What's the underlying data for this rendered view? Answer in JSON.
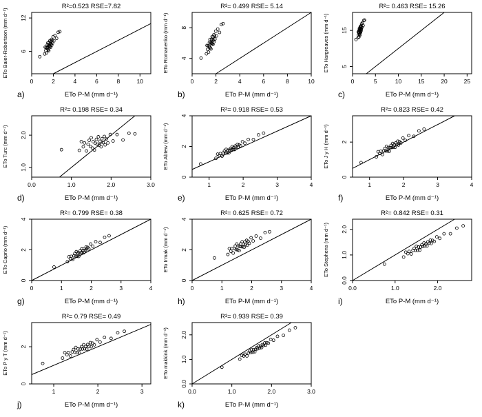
{
  "figure": {
    "background": "#ffffff",
    "foreground": "#000000",
    "marker": "open-circle",
    "grid": "off",
    "layout": {
      "columns": 3,
      "rows": 4,
      "panel_count": 11
    }
  },
  "chart_data": {
    "type": "scatter",
    "xlabel": "ETo P-M (mm d⁻¹)",
    "x": [
      0.75,
      1.2,
      1.25,
      1.3,
      1.33,
      1.38,
      1.42,
      1.45,
      1.48,
      1.5,
      1.53,
      1.55,
      1.58,
      1.6,
      1.63,
      1.65,
      1.68,
      1.7,
      1.72,
      1.75,
      1.77,
      1.8,
      1.83,
      1.85,
      1.88,
      1.92,
      1.98,
      2.05,
      2.15,
      2.3,
      2.45,
      2.6
    ],
    "panels": [
      {
        "id": "a",
        "letter": "a)",
        "ylabel": "ETo Baier-Robertson (mm d⁻¹)",
        "r2": 0.523,
        "rse": 7.82,
        "annotation": "R²=0.523  RSE=7.82",
        "xlim": [
          0,
          11
        ],
        "ylim": [
          2,
          13
        ],
        "xticks": [
          "0",
          "2",
          "4",
          "6",
          "8",
          "10"
        ],
        "yticks": [
          "6",
          "12"
        ],
        "identity_line": true,
        "y": [
          5.06,
          5.55,
          6.76,
          6.16,
          6.69,
          5.73,
          6.64,
          7.17,
          6.43,
          7.56,
          6.29,
          7.15,
          6.14,
          7.0,
          7.53,
          6.95,
          7.92,
          6.89,
          7.44,
          6.75,
          7.83,
          7.37,
          8.16,
          7.13,
          7.93,
          7.49,
          8.63,
          7.9,
          8.87,
          8.35,
          9.44,
          9.55
        ]
      },
      {
        "id": "b",
        "letter": "b)",
        "ylabel": "ETo Romanenko (mm d⁻¹)",
        "r2": 0.499,
        "rse": 5.14,
        "annotation": "R²= 0.499  RSE= 5.14",
        "xlim": [
          0,
          10
        ],
        "ylim": [
          2,
          10
        ],
        "xticks": [
          "0",
          "2",
          "4",
          "6",
          "8",
          "10"
        ],
        "yticks": [
          "4",
          "8"
        ],
        "identity_line": true,
        "y": [
          4.04,
          4.6,
          5.69,
          5.17,
          5.65,
          4.81,
          5.63,
          6.11,
          5.46,
          6.47,
          5.35,
          6.12,
          5.23,
          6.0,
          6.48,
          5.97,
          6.84,
          5.93,
          6.42,
          5.82,
          6.79,
          6.38,
          7.1,
          6.19,
          6.9,
          6.52,
          7.55,
          6.93,
          7.82,
          7.39,
          8.41,
          8.54
        ]
      },
      {
        "id": "c",
        "letter": "c)",
        "ylabel": "ETo Hargreaves (mm d⁻¹)",
        "r2": 0.463,
        "rse": 15.26,
        "annotation": "R²= 0.463  RSE= 15.26",
        "xlim": [
          0,
          26
        ],
        "ylim": [
          3,
          20
        ],
        "xticks": [
          "0",
          "5",
          "10",
          "15",
          "20",
          "25"
        ],
        "yticks": [
          "5",
          "15"
        ],
        "identity_line": true,
        "y": [
          12.49,
          13.0,
          14.59,
          13.78,
          14.47,
          13.18,
          14.38,
          15.07,
          14.08,
          15.58,
          13.87,
          15.01,
          13.66,
          14.8,
          15.49,
          14.71,
          16.0,
          14.62,
          15.34,
          14.41,
          15.85,
          15.22,
          16.27,
          14.89,
          15.94,
          15.34,
          16.84,
          15.85,
          17.11,
          16.36,
          17.77,
          17.86
        ]
      },
      {
        "id": "d",
        "letter": "d)",
        "ylabel": "ETo Turc (mm d⁻¹)",
        "r2": 0.198,
        "rse": 0.34,
        "annotation": "R²= 0.198  RSE= 0.34",
        "xlim": [
          0,
          3
        ],
        "ylim": [
          0.7,
          2.6
        ],
        "xticks": [
          "0.0",
          "1.0",
          "2.0",
          "3.0"
        ],
        "yticks": [
          "1.0",
          "2.0"
        ],
        "identity_line": true,
        "y": [
          1.55,
          1.53,
          1.8,
          1.64,
          1.76,
          1.51,
          1.72,
          1.84,
          1.65,
          1.92,
          1.6,
          1.8,
          1.54,
          1.75,
          1.87,
          1.72,
          1.95,
          1.69,
          1.81,
          1.64,
          1.89,
          1.77,
          1.96,
          1.7,
          1.88,
          1.76,
          2.02,
          1.82,
          2.02,
          1.85,
          2.06,
          2.04
        ]
      },
      {
        "id": "e",
        "letter": "e)",
        "ylabel": "ETo Abtew (mm d⁻¹)",
        "r2": 0.918,
        "rse": 0.53,
        "annotation": "R²= 0.918  RSE= 0.53",
        "xlim": [
          0.5,
          4
        ],
        "ylim": [
          0,
          4
        ],
        "xticks": [
          "1",
          "2",
          "3",
          "4"
        ],
        "yticks": [
          "0",
          "2",
          "4"
        ],
        "identity_line": true,
        "y": [
          0.86,
          1.23,
          1.5,
          1.41,
          1.54,
          1.37,
          1.58,
          1.7,
          1.57,
          1.81,
          1.58,
          1.76,
          1.58,
          1.76,
          1.88,
          1.78,
          1.99,
          1.8,
          1.92,
          1.8,
          2.03,
          1.95,
          2.13,
          1.94,
          2.11,
          2.05,
          2.31,
          2.21,
          2.46,
          2.45,
          2.76,
          2.87
        ]
      },
      {
        "id": "f",
        "letter": "f)",
        "ylabel": "ETo J y H (mm d⁻¹)",
        "r2": 0.823,
        "rse": 0.42,
        "annotation": "R²= 0.823  RSE= 0.42",
        "xlim": [
          0.5,
          4
        ],
        "ylim": [
          0,
          3.5
        ],
        "xticks": [
          "1",
          "2",
          "3",
          "4"
        ],
        "yticks": [
          "0",
          "2"
        ],
        "identity_line": true,
        "y": [
          0.83,
          1.16,
          1.45,
          1.35,
          1.48,
          1.29,
          1.51,
          1.64,
          1.49,
          1.76,
          1.49,
          1.69,
          1.48,
          1.68,
          1.81,
          1.69,
          1.92,
          1.71,
          1.84,
          1.7,
          1.95,
          1.86,
          2.05,
          1.83,
          2.02,
          1.95,
          2.23,
          2.1,
          2.37,
          2.33,
          2.64,
          2.74
        ]
      },
      {
        "id": "g",
        "letter": "g)",
        "ylabel": "ETo Caprio (mm d⁻¹)",
        "r2": 0.799,
        "rse": 0.38,
        "annotation": "R²= 0.799  RSE= 0.38",
        "xlim": [
          0,
          4
        ],
        "ylim": [
          0,
          4
        ],
        "xticks": [
          "0",
          "1",
          "2",
          "3",
          "4"
        ],
        "yticks": [
          "0",
          "2",
          "4"
        ],
        "identity_line": true,
        "y": [
          0.88,
          1.23,
          1.55,
          1.43,
          1.58,
          1.37,
          1.61,
          1.76,
          1.59,
          1.88,
          1.58,
          1.8,
          1.57,
          1.79,
          1.94,
          1.8,
          2.06,
          1.82,
          1.96,
          1.81,
          2.08,
          1.98,
          2.19,
          1.95,
          2.16,
          2.07,
          2.38,
          2.24,
          2.53,
          2.48,
          2.82,
          2.92
        ]
      },
      {
        "id": "h",
        "letter": "h)",
        "ylabel": "ETo Irmak (mm d⁻¹)",
        "r2": 0.625,
        "rse": 0.72,
        "annotation": "R²= 0.625  RSE= 0.72",
        "xlim": [
          0,
          4
        ],
        "ylim": [
          0,
          4
        ],
        "xticks": [
          "0",
          "1",
          "2",
          "3",
          "4"
        ],
        "yticks": [
          "0",
          "2",
          "4"
        ],
        "identity_line": true,
        "y": [
          1.47,
          1.7,
          2.08,
          1.91,
          2.08,
          1.79,
          2.08,
          2.25,
          2.02,
          2.38,
          1.99,
          2.26,
          1.95,
          2.22,
          2.39,
          2.21,
          2.52,
          2.2,
          2.38,
          2.17,
          2.51,
          2.37,
          2.62,
          2.3,
          2.56,
          2.43,
          2.79,
          2.58,
          2.9,
          2.76,
          3.13,
          3.18
        ]
      },
      {
        "id": "i",
        "letter": "i)",
        "ylabel": "ETo Stephens (mm d⁻¹)",
        "r2": 0.842,
        "rse": 0.31,
        "annotation": "R²= 0.842  RSE= 0.31",
        "xlim": [
          0,
          2.8
        ],
        "ylim": [
          0,
          2.4
        ],
        "xticks": [
          "0.0",
          "1.0",
          "2.0"
        ],
        "yticks": [
          "0.0",
          "1.0",
          "2.0"
        ],
        "identity_line": true,
        "y": [
          0.64,
          0.92,
          1.11,
          1.05,
          1.14,
          1.04,
          1.18,
          1.26,
          1.18,
          1.34,
          1.18,
          1.31,
          1.19,
          1.31,
          1.4,
          1.33,
          1.47,
          1.35,
          1.43,
          1.35,
          1.51,
          1.46,
          1.58,
          1.45,
          1.57,
          1.53,
          1.71,
          1.65,
          1.83,
          1.83,
          2.05,
          2.14
        ]
      },
      {
        "id": "j",
        "letter": "j)",
        "ylabel": "ETo P y T (mm d⁻¹)",
        "r2": 0.79,
        "rse": 0.49,
        "annotation": "R²= 0.79  RSE= 0.49",
        "xlim": [
          0.5,
          3.2
        ],
        "ylim": [
          0,
          3.3
        ],
        "xticks": [
          "1",
          "2",
          "3"
        ],
        "yticks": [
          "0",
          "2"
        ],
        "identity_line": true,
        "y": [
          1.1,
          1.39,
          1.68,
          1.57,
          1.69,
          1.5,
          1.72,
          1.85,
          1.7,
          1.96,
          1.68,
          1.88,
          1.67,
          1.87,
          2.0,
          1.88,
          2.11,
          1.89,
          2.01,
          1.87,
          2.12,
          2.03,
          2.22,
          2.0,
          2.19,
          2.1,
          2.38,
          2.25,
          2.5,
          2.45,
          2.75,
          2.83
        ]
      },
      {
        "id": "k",
        "letter": "k)",
        "ylabel": "ETo makkink (mm d⁻¹)",
        "r2": 0.939,
        "rse": 0.39,
        "annotation": "R²= 0.939  RSE= 0.39",
        "xlim": [
          0,
          3
        ],
        "ylim": [
          0,
          2.5
        ],
        "xticks": [
          "0.0",
          "1.0",
          "2.0",
          "3.0"
        ],
        "yticks": [
          "0.0",
          "1.0",
          "2.0"
        ],
        "identity_line": true,
        "y": [
          0.68,
          1.01,
          1.16,
          1.14,
          1.21,
          1.14,
          1.26,
          1.33,
          1.28,
          1.4,
          1.29,
          1.39,
          1.31,
          1.41,
          1.48,
          1.43,
          1.55,
          1.46,
          1.53,
          1.48,
          1.6,
          1.57,
          1.67,
          1.58,
          1.68,
          1.66,
          1.81,
          1.78,
          1.94,
          1.98,
          2.19,
          2.29
        ]
      }
    ]
  }
}
